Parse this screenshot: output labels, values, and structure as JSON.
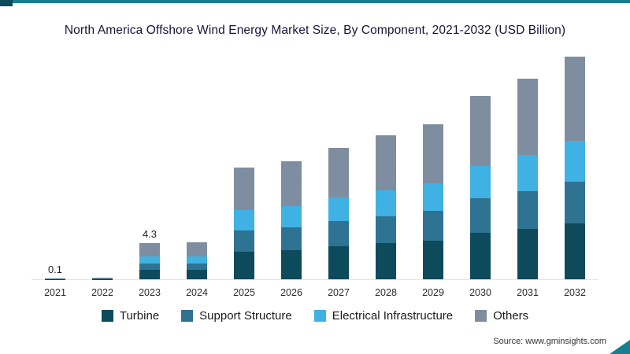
{
  "title": "North America Offshore Wind Energy Market Size, By Component, 2021-2032 (USD Billion)",
  "source": "Source: www.gminsights.com",
  "accent_color": "#177f8f",
  "chart_data": {
    "type": "bar",
    "stacked": true,
    "title": "North America Offshore Wind Energy Market Size, By Component, 2021-2032 (USD Billion)",
    "categories": [
      "2021",
      "2022",
      "2023",
      "2024",
      "2025",
      "2026",
      "2027",
      "2028",
      "2029",
      "2030",
      "2031",
      "2032"
    ],
    "series": [
      {
        "name": "Turbine",
        "color": "#0d4a5c",
        "values": [
          0.03,
          0.04,
          1.1,
          1.1,
          3.3,
          3.5,
          3.9,
          4.3,
          4.6,
          5.5,
          6.0,
          6.6
        ]
      },
      {
        "name": "Support Structure",
        "color": "#2e7391",
        "values": [
          0.02,
          0.03,
          0.8,
          0.8,
          2.5,
          2.7,
          3.0,
          3.2,
          3.5,
          4.1,
          4.5,
          5.0
        ]
      },
      {
        "name": "Electrical Infrastructure",
        "color": "#3fb1e3",
        "values": [
          0.02,
          0.03,
          0.8,
          0.8,
          2.4,
          2.5,
          2.8,
          3.1,
          3.3,
          3.9,
          4.3,
          4.8
        ]
      },
      {
        "name": "Others",
        "color": "#7e8ea0",
        "values": [
          0.03,
          0.05,
          1.6,
          1.7,
          5.1,
          5.3,
          5.9,
          6.5,
          7.0,
          8.3,
          9.0,
          10.0
        ]
      }
    ],
    "totals": [
      0.1,
      0.15,
      4.3,
      4.4,
      13.3,
      14.0,
      15.6,
      17.1,
      18.4,
      21.8,
      23.8,
      26.4
    ],
    "data_labels": {
      "2021": "0.1",
      "2023": "4.3"
    },
    "xlabel": "",
    "ylabel": "",
    "ylim": [
      0,
      27
    ],
    "grid": false,
    "legend_position": "bottom"
  }
}
